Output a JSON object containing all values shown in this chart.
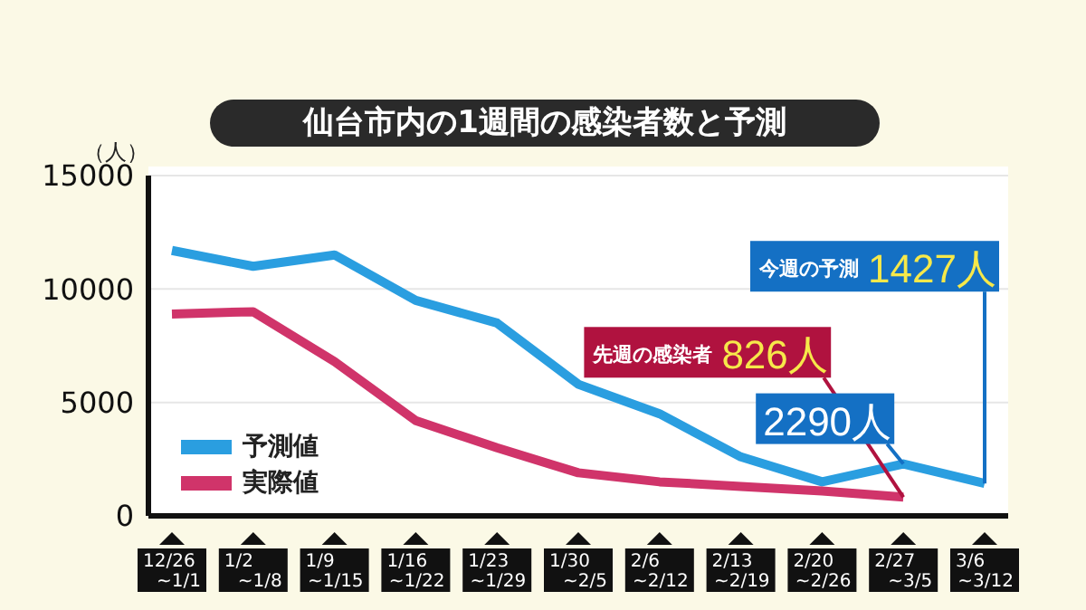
{
  "chart_data": {
    "type": "line",
    "title": "仙台市内の1週間の感染者数と予測",
    "ylabel": "（人）",
    "categories": [
      "12/26\n~1/1",
      "1/2\n~1/8",
      "1/9\n~1/15",
      "1/16\n~1/22",
      "1/23\n~1/29",
      "1/30\n~2/5",
      "2/6\n~2/12",
      "2/13\n~2/19",
      "2/20\n~2/26",
      "2/27\n~3/5",
      "3/6\n~3/12"
    ],
    "series": [
      {
        "name": "予測値",
        "color": "#2a9ee0",
        "values": [
          11700,
          11000,
          11500,
          9500,
          8500,
          5800,
          4500,
          2600,
          1500,
          2290,
          1427
        ]
      },
      {
        "name": "実際値",
        "color": "#d0346a",
        "values": [
          8900,
          9000,
          6800,
          4200,
          3000,
          1900,
          1500,
          1300,
          1100,
          826,
          null
        ]
      }
    ],
    "ylim": [
      0,
      15000
    ],
    "yticks": [
      0,
      5000,
      10000,
      15000
    ],
    "grid": "y",
    "legend": "bottom left",
    "marker": "none",
    "line_style": "solid",
    "annotations": [
      {
        "text": "今週の予測 1427人",
        "x": "3/6\n~3/12",
        "y": 1427
      },
      {
        "text": "先週の感染者 826人",
        "x": "2/27\n~3/5",
        "y": 826
      },
      {
        "text": "2290人",
        "x": "2/27\n~3/5",
        "y": 2290
      }
    ]
  }
}
